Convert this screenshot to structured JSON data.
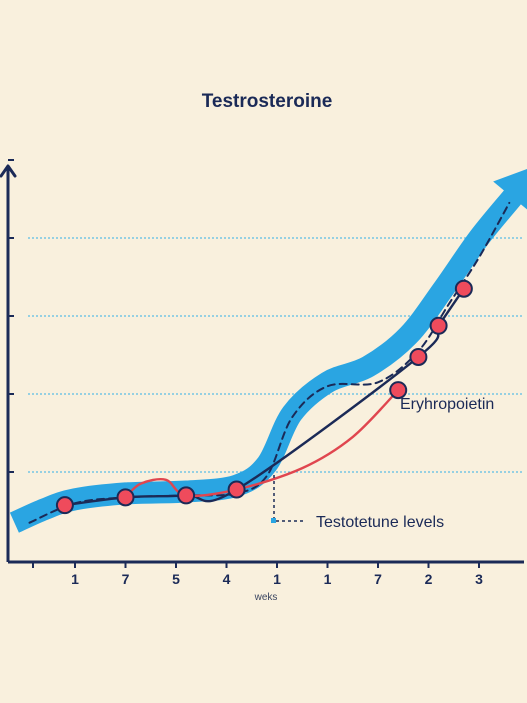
{
  "chart_data": {
    "type": "line",
    "title": "Testrosteroine",
    "xlabel": "weks",
    "ylabel": "",
    "categories": [
      "1",
      "7",
      "5",
      "4",
      "1",
      "1",
      "7",
      "2",
      "3"
    ],
    "ylim": [
      0,
      10
    ],
    "grid": true,
    "series": [
      {
        "key": "trend",
        "color": "#2aa5e2",
        "style": "wide band with arrow",
        "points": [
          [
            -1.2,
            0.7
          ],
          [
            -0.6,
            1.05
          ],
          [
            0.0,
            1.3
          ],
          [
            1.0,
            1.45
          ],
          [
            2.2,
            1.5
          ],
          [
            3.2,
            1.65
          ],
          [
            3.8,
            2.2
          ],
          [
            4.3,
            3.5
          ],
          [
            5.0,
            4.3
          ],
          [
            5.8,
            4.7
          ],
          [
            6.6,
            5.5
          ],
          [
            7.3,
            6.7
          ],
          [
            8.0,
            8.0
          ],
          [
            8.7,
            9.1
          ]
        ]
      },
      {
        "key": "dashed",
        "color": "#1b2a57",
        "style": "dashed",
        "points": [
          [
            -0.9,
            0.7
          ],
          [
            0.0,
            1.2
          ],
          [
            1.0,
            1.35
          ],
          [
            2.2,
            1.4
          ],
          [
            3.2,
            1.45
          ],
          [
            3.8,
            1.9
          ],
          [
            4.3,
            3.4
          ],
          [
            5.0,
            4.2
          ],
          [
            6.0,
            4.3
          ],
          [
            6.8,
            5.1
          ],
          [
            7.4,
            6.3
          ],
          [
            8.0,
            7.5
          ],
          [
            8.6,
            8.9
          ]
        ]
      },
      {
        "key": "testosterone",
        "color": "#1b2a57",
        "style": "solid",
        "points": [
          [
            -0.2,
            1.15
          ],
          [
            1.0,
            1.35
          ],
          [
            2.2,
            1.4
          ],
          [
            3.2,
            1.55
          ],
          [
            6.8,
            4.95
          ],
          [
            7.2,
            5.75
          ],
          [
            7.7,
            6.7
          ]
        ]
      },
      {
        "key": "erythropoietin",
        "color": "#e0464f",
        "style": "solid",
        "points": [
          [
            1.0,
            1.35
          ],
          [
            1.3,
            1.7
          ],
          [
            1.8,
            1.8
          ],
          [
            2.2,
            1.4
          ],
          [
            3.2,
            1.55
          ],
          [
            4.5,
            2.1
          ],
          [
            5.5,
            2.9
          ],
          [
            6.4,
            4.1
          ]
        ]
      }
    ],
    "markers": [
      [
        -0.2,
        1.15
      ],
      [
        1.0,
        1.35
      ],
      [
        2.2,
        1.4
      ],
      [
        3.2,
        1.55
      ],
      [
        6.8,
        4.95
      ],
      [
        6.4,
        4.1
      ],
      [
        7.2,
        5.75
      ],
      [
        7.7,
        6.7
      ]
    ],
    "annotations": [
      {
        "text": "Eryhropoietin",
        "x": 6.8,
        "y": 4.3
      },
      {
        "text": "Testotetune levels",
        "x": 4.9,
        "y": 0.85
      }
    ],
    "colors": {
      "background": "#f9f0dd",
      "axis": "#1b2a57",
      "grid": "#5bbde6",
      "marker_fill": "#ef4b5c"
    }
  }
}
